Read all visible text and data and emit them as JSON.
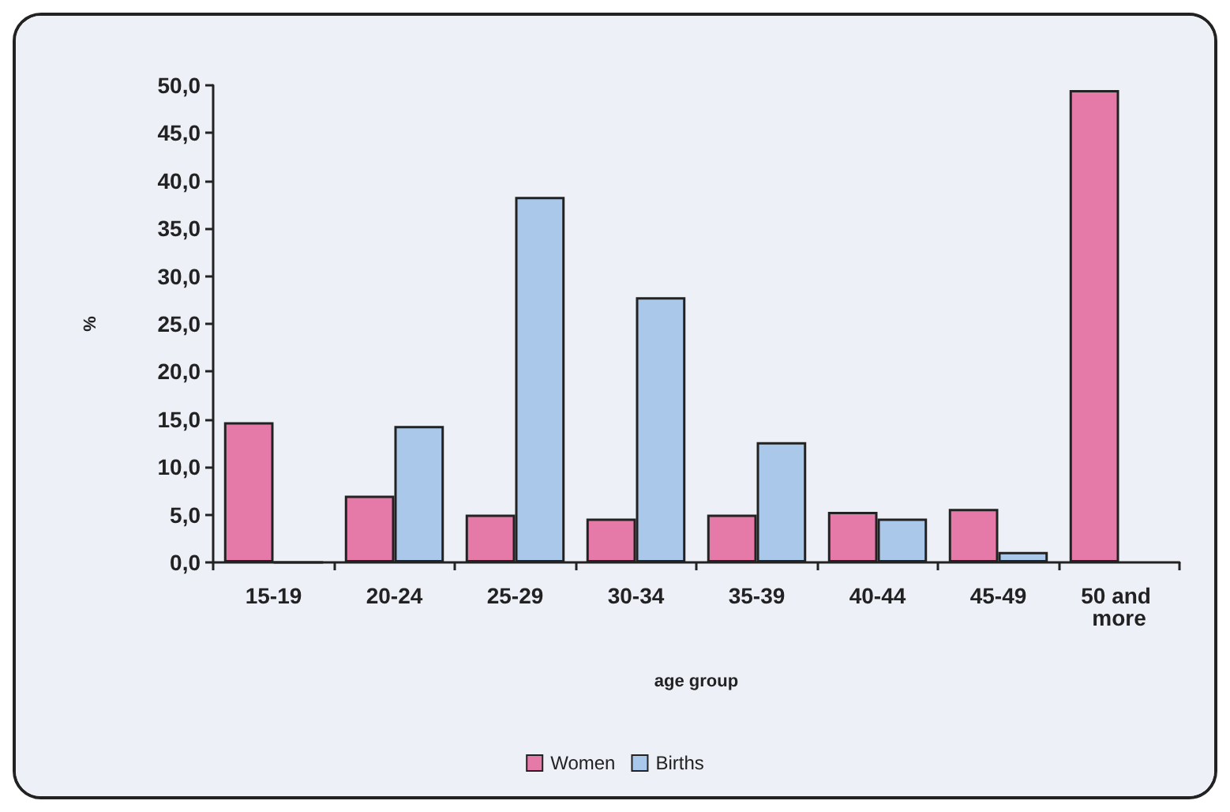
{
  "chart_data": {
    "type": "bar",
    "xlabel": "age group",
    "ylabel": "%",
    "categories": [
      "15-19",
      "20-24",
      "25-29",
      "30-34",
      "35-39",
      "40-44",
      "45-49",
      "50 and more"
    ],
    "series": [
      {
        "name": "Women",
        "color": "#e57aa9",
        "values": [
          14.7,
          7.0,
          5.0,
          4.6,
          5.0,
          5.3,
          5.6,
          49.5
        ]
      },
      {
        "name": "Births",
        "color": "#aac8ea",
        "values": [
          0,
          14.3,
          38.3,
          27.8,
          12.6,
          4.6,
          1.1,
          null
        ]
      }
    ],
    "ylim": [
      0,
      50
    ],
    "yticks": [
      {
        "value": 0,
        "label": "0,0"
      },
      {
        "value": 5,
        "label": "5,0"
      },
      {
        "value": 10,
        "label": "10,0"
      },
      {
        "value": 15,
        "label": "15,0"
      },
      {
        "value": 20,
        "label": "20,0"
      },
      {
        "value": 25,
        "label": "25,0"
      },
      {
        "value": 30,
        "label": "30,0"
      },
      {
        "value": 35,
        "label": "35,0"
      },
      {
        "value": 40,
        "label": "40,0"
      },
      {
        "value": 45,
        "label": "45,0"
      },
      {
        "value": 50,
        "label": "50,0"
      }
    ],
    "grid": false,
    "legend": "bottom"
  }
}
